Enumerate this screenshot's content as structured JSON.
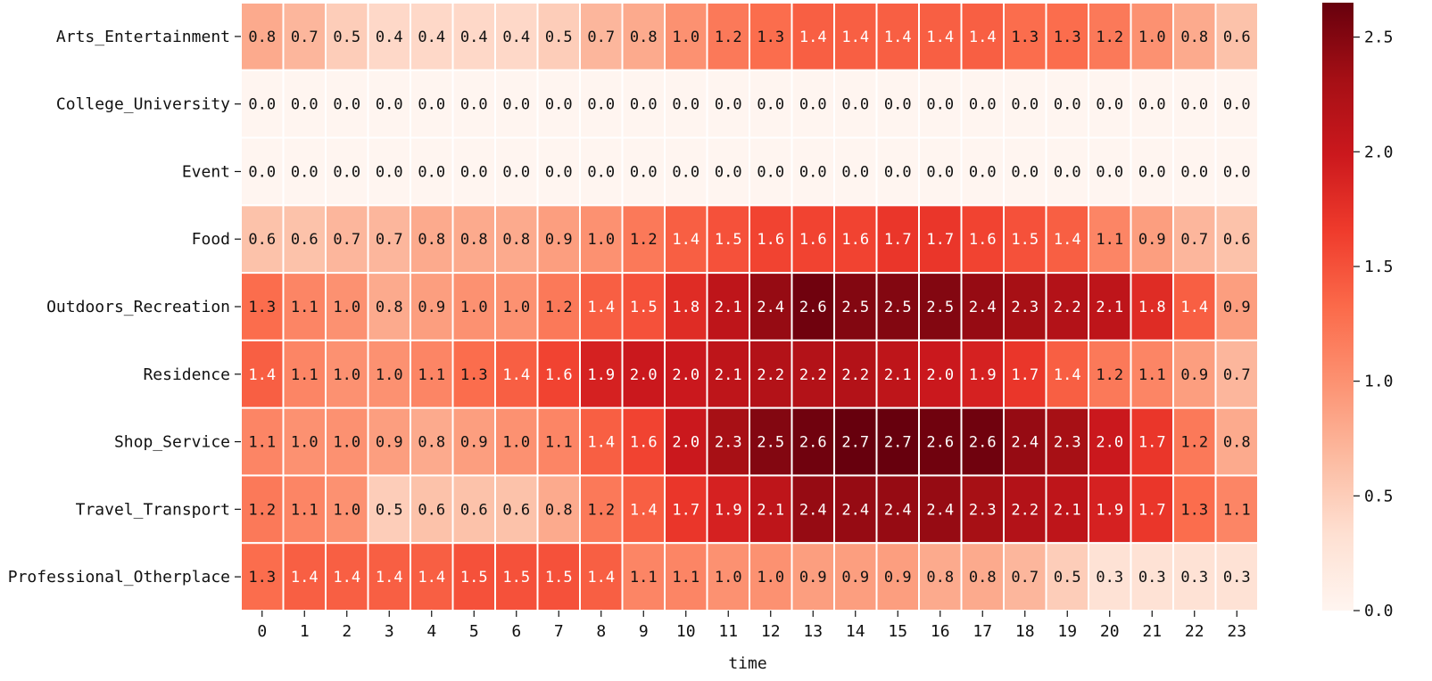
{
  "chart_data": {
    "type": "heatmap",
    "title": "",
    "xlabel": "time",
    "ylabel": "",
    "x_categories": [
      "0",
      "1",
      "2",
      "3",
      "4",
      "5",
      "6",
      "7",
      "8",
      "9",
      "10",
      "11",
      "12",
      "13",
      "14",
      "15",
      "16",
      "17",
      "18",
      "19",
      "20",
      "21",
      "22",
      "23"
    ],
    "y_categories": [
      "Arts_Entertainment",
      "College_University",
      "Event",
      "Food",
      "Outdoors_Recreation",
      "Residence",
      "Shop_Service",
      "Travel_Transport",
      "Professional_Otherplace"
    ],
    "values": [
      [
        0.8,
        0.7,
        0.5,
        0.4,
        0.4,
        0.4,
        0.4,
        0.5,
        0.7,
        0.8,
        1.0,
        1.2,
        1.3,
        1.4,
        1.4,
        1.4,
        1.4,
        1.4,
        1.3,
        1.3,
        1.2,
        1.0,
        0.8,
        0.6
      ],
      [
        0.0,
        0.0,
        0.0,
        0.0,
        0.0,
        0.0,
        0.0,
        0.0,
        0.0,
        0.0,
        0.0,
        0.0,
        0.0,
        0.0,
        0.0,
        0.0,
        0.0,
        0.0,
        0.0,
        0.0,
        0.0,
        0.0,
        0.0,
        0.0
      ],
      [
        0.0,
        0.0,
        0.0,
        0.0,
        0.0,
        0.0,
        0.0,
        0.0,
        0.0,
        0.0,
        0.0,
        0.0,
        0.0,
        0.0,
        0.0,
        0.0,
        0.0,
        0.0,
        0.0,
        0.0,
        0.0,
        0.0,
        0.0,
        0.0
      ],
      [
        0.6,
        0.6,
        0.7,
        0.7,
        0.8,
        0.8,
        0.8,
        0.9,
        1.0,
        1.2,
        1.4,
        1.5,
        1.6,
        1.6,
        1.6,
        1.7,
        1.7,
        1.6,
        1.5,
        1.4,
        1.1,
        0.9,
        0.7,
        0.6
      ],
      [
        1.3,
        1.1,
        1.0,
        0.8,
        0.9,
        1.0,
        1.0,
        1.2,
        1.4,
        1.5,
        1.8,
        2.1,
        2.4,
        2.6,
        2.5,
        2.5,
        2.5,
        2.4,
        2.3,
        2.2,
        2.1,
        1.8,
        1.4,
        0.9
      ],
      [
        1.4,
        1.1,
        1.0,
        1.0,
        1.1,
        1.3,
        1.4,
        1.6,
        1.9,
        2.0,
        2.0,
        2.1,
        2.2,
        2.2,
        2.2,
        2.1,
        2.0,
        1.9,
        1.7,
        1.4,
        1.2,
        1.1,
        0.9,
        0.7
      ],
      [
        1.1,
        1.0,
        1.0,
        0.9,
        0.8,
        0.9,
        1.0,
        1.1,
        1.4,
        1.6,
        2.0,
        2.3,
        2.5,
        2.6,
        2.7,
        2.7,
        2.6,
        2.6,
        2.4,
        2.3,
        2.0,
        1.7,
        1.2,
        0.8
      ],
      [
        1.2,
        1.1,
        1.0,
        0.5,
        0.6,
        0.6,
        0.6,
        0.8,
        1.2,
        1.4,
        1.7,
        1.9,
        2.1,
        2.4,
        2.4,
        2.4,
        2.4,
        2.3,
        2.2,
        2.1,
        1.9,
        1.7,
        1.3,
        1.1
      ],
      [
        1.3,
        1.4,
        1.4,
        1.4,
        1.4,
        1.5,
        1.5,
        1.5,
        1.4,
        1.1,
        1.1,
        1.0,
        1.0,
        0.9,
        0.9,
        0.9,
        0.8,
        0.8,
        0.7,
        0.5,
        0.3,
        0.3,
        0.3,
        0.3
      ]
    ],
    "value_format": "1 decimal",
    "colormap": "Reds",
    "vmin": 0.0,
    "vmax": 2.65,
    "colorbar": {
      "ticks": [
        0.0,
        0.5,
        1.0,
        1.5,
        2.0,
        2.5
      ],
      "tick_labels": [
        "0.0",
        "0.5",
        "1.0",
        "1.5",
        "2.0",
        "2.5"
      ],
      "placement": "right"
    },
    "grid_line_color": "#ffffff",
    "colors": [
      "#fff5f0",
      "#fee0d2",
      "#fcbba1",
      "#fc9272",
      "#fb6a4a",
      "#ef3b2c",
      "#cb181d",
      "#a50f15",
      "#67000d"
    ]
  }
}
